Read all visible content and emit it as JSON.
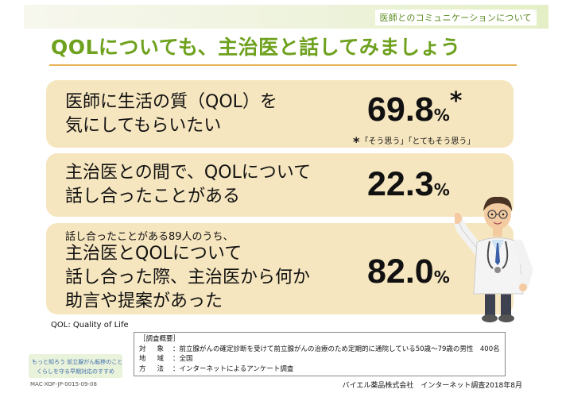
{
  "header": {
    "tag": "医師とのコミュニケーションについて",
    "title": "QOLについても、主治医と話してみましょう"
  },
  "cards": [
    {
      "lines": [
        "医師に生活の質（QOL）を",
        "気にしてもらいたい"
      ],
      "value": "69.8",
      "unit": "%",
      "mark": "*",
      "footnote": "「そう思う」「とてもそう思う」",
      "footnote_mark": "*"
    },
    {
      "lines": [
        "主治医との間で、QOLについて",
        "話し合ったことがある"
      ],
      "value": "22.3",
      "unit": "%"
    },
    {
      "prefix": "話し合ったことがある89人のうち、",
      "lines": [
        "主治医とQOLについて",
        "話し合った際、主治医から何か",
        "助言や提案があった"
      ],
      "value": "82.0",
      "unit": "%"
    }
  ],
  "qol_note": "QOL: Quality of Life",
  "survey": {
    "heading": "［調査概要］",
    "rows": [
      {
        "label": "対象",
        "value": "前立腺がんの確定診断を受けて前立腺がんの治療のため定期的に通院している50歳〜79歳の男性　400名"
      },
      {
        "label": "地域",
        "value": "全国"
      },
      {
        "label": "方法",
        "value": "インターネットによるアンケート調査"
      }
    ]
  },
  "brand": {
    "line1": "もっと知ろう 前立腺がん転移のこと",
    "line2": "くらしを守る早期対応のすすめ"
  },
  "doc_code": "MAC-XOF-JP-0015-09-08",
  "credit": "バイエル薬品株式会社　インターネット調査2018年8月",
  "colors": {
    "title": "#6ea11e",
    "card": "#f6e6bf",
    "rule": "#e6b25a"
  }
}
